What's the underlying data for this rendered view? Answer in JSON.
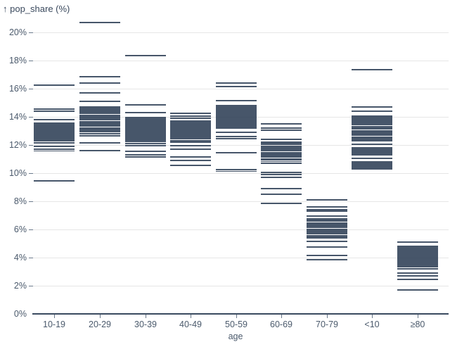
{
  "chart_data": {
    "type": "tick-strip",
    "title": "↑ pop_share (%)",
    "ylabel": "pop_share (%)",
    "xlabel": "age",
    "legend": "none",
    "grid": true,
    "ylim": [
      0,
      21.5
    ],
    "y_tick_values": [
      0,
      2,
      4,
      6,
      8,
      10,
      12,
      14,
      16,
      18,
      20
    ],
    "y_tick_labels": [
      "0%",
      "2%",
      "4%",
      "6%",
      "8%",
      "10%",
      "12%",
      "14%",
      "16%",
      "18%",
      "20%"
    ],
    "categories": [
      "10-19",
      "20-29",
      "30-39",
      "40-49",
      "50-59",
      "60-69",
      "70-79",
      "<10",
      "≥80"
    ],
    "colors": {
      "mark": "#2e3f55",
      "grid": "#e6e6e6",
      "axis": "#3a4a5f",
      "text": "#4b5a6c"
    },
    "series": [
      {
        "category": "10-19",
        "values": [
          16.25,
          14.55,
          14.4,
          13.8,
          13.55,
          13.47,
          13.39,
          13.31,
          13.23,
          13.15,
          13.07,
          12.99,
          12.91,
          12.83,
          12.75,
          12.67,
          12.59,
          12.51,
          12.43,
          12.35,
          12.27,
          12.15,
          11.9,
          11.7,
          11.58,
          9.45
        ]
      },
      {
        "category": "20-29",
        "values": [
          20.7,
          16.85,
          16.4,
          15.7,
          15.1,
          14.7,
          14.6,
          14.5,
          14.4,
          14.31,
          14.22,
          14.13,
          14.04,
          13.95,
          13.86,
          13.77,
          13.68,
          13.59,
          13.5,
          13.41,
          13.32,
          13.23,
          13.14,
          13.05,
          12.95,
          12.8,
          12.65,
          12.15,
          11.6
        ]
      },
      {
        "category": "30-39",
        "values": [
          18.35,
          14.85,
          14.3,
          13.95,
          13.87,
          13.79,
          13.71,
          13.63,
          13.55,
          13.47,
          13.39,
          13.31,
          13.23,
          13.15,
          13.07,
          12.99,
          12.91,
          12.83,
          12.75,
          12.67,
          12.59,
          12.51,
          12.43,
          12.35,
          12.25,
          12.1,
          11.95,
          11.55,
          11.3,
          11.15
        ]
      },
      {
        "category": "40-49",
        "values": [
          14.25,
          14.05,
          13.9,
          13.7,
          13.62,
          13.54,
          13.46,
          13.38,
          13.3,
          13.22,
          13.14,
          13.06,
          12.98,
          12.9,
          12.82,
          12.74,
          12.66,
          12.58,
          12.5,
          12.42,
          12.3,
          12.2,
          11.95,
          11.7,
          11.15,
          10.9,
          10.55
        ]
      },
      {
        "category": "50-59",
        "values": [
          16.4,
          16.15,
          15.15,
          14.8,
          14.7,
          14.6,
          14.5,
          14.4,
          14.3,
          14.2,
          14.1,
          14.0,
          13.9,
          13.8,
          13.7,
          13.6,
          13.5,
          13.4,
          13.3,
          13.2,
          12.9,
          12.6,
          12.45,
          11.45,
          10.25,
          10.12
        ]
      },
      {
        "category": "60-69",
        "values": [
          13.5,
          13.2,
          13.05,
          12.4,
          12.2,
          12.11,
          12.02,
          11.93,
          11.84,
          11.75,
          11.66,
          11.57,
          11.48,
          11.39,
          11.3,
          11.21,
          11.12,
          11.03,
          10.94,
          10.82,
          10.7,
          10.05,
          9.9,
          9.7,
          8.9,
          8.5,
          7.85
        ]
      },
      {
        "category": "70-79",
        "values": [
          8.1,
          7.6,
          7.4,
          7.3,
          6.95,
          6.75,
          6.66,
          6.57,
          6.48,
          6.39,
          6.3,
          6.21,
          6.12,
          6.03,
          5.94,
          5.85,
          5.76,
          5.67,
          5.58,
          5.49,
          5.4,
          5.15,
          4.75,
          4.15,
          3.85
        ]
      },
      {
        "category": "<10",
        "values": [
          17.35,
          14.7,
          14.4,
          14.05,
          13.97,
          13.89,
          13.81,
          13.73,
          13.65,
          13.55,
          13.45,
          13.3,
          13.21,
          13.12,
          13.03,
          12.94,
          12.85,
          12.76,
          12.67,
          12.58,
          12.49,
          12.4,
          12.3,
          12.05,
          11.8,
          11.7,
          11.6,
          11.5,
          11.4,
          11.3,
          11.05,
          10.8,
          10.7,
          10.6,
          10.5,
          10.4,
          10.3
        ]
      },
      {
        "category": "≥80",
        "values": [
          5.1,
          4.8,
          4.72,
          4.64,
          4.56,
          4.48,
          4.4,
          4.32,
          4.24,
          4.16,
          4.08,
          4.0,
          3.92,
          3.84,
          3.76,
          3.68,
          3.6,
          3.52,
          3.44,
          3.36,
          3.2,
          2.9,
          2.7,
          2.45,
          1.7
        ]
      }
    ]
  }
}
